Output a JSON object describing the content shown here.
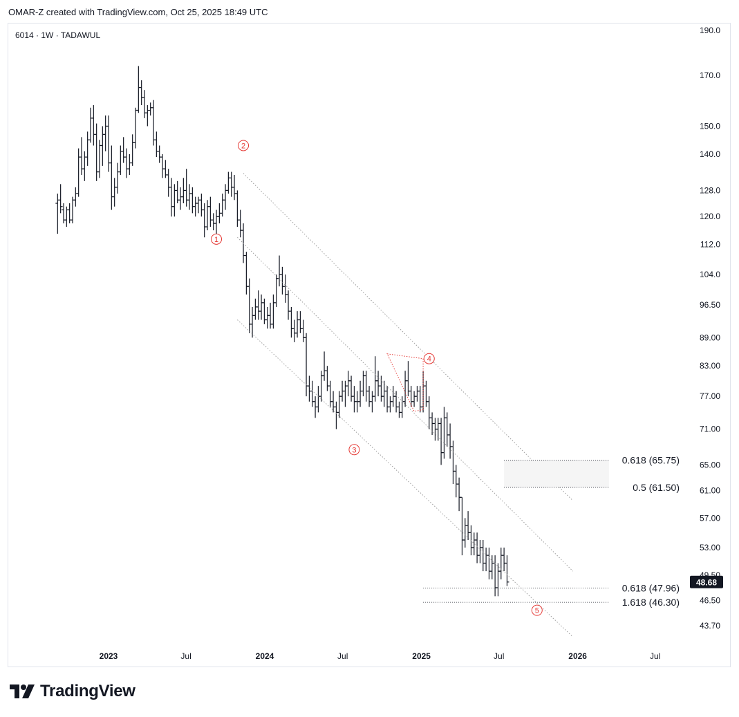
{
  "header": {
    "caption": "OMAR-Z created with TradingView.com, Oct 25, 2025 18:49 UTC"
  },
  "symbol_line": "6014 · 1W · TADAWUL",
  "brand": {
    "name": "TradingView",
    "logo_icon": "tradingview-logo-icon"
  },
  "colors": {
    "bars": "#131722",
    "wave_labels": "#e53935",
    "fib_lines": "#131722",
    "channel": "#9e9e9e",
    "price_tag_bg": "#131722"
  },
  "chart_data": {
    "type": "ohlc",
    "timeframe": "1W",
    "exchange": "TADAWUL",
    "ticker": "6014",
    "y_scale": "log",
    "y_ticks": [
      "190.0",
      "170.0",
      "150.0",
      "140.0",
      "128.0",
      "120.0",
      "112.0",
      "104.0",
      "96.50",
      "89.00",
      "83.00",
      "77.00",
      "71.00",
      "65.00",
      "61.00",
      "57.00",
      "53.00",
      "49.50",
      "46.50",
      "43.70"
    ],
    "x_ticks": [
      "2023",
      "Jul",
      "2024",
      "Jul",
      "2025",
      "Jul",
      "2026",
      "Jul"
    ],
    "last_price": "48.68",
    "wave_labels": [
      {
        "label": "1",
        "date": "2023-09-10",
        "price": 113.5
      },
      {
        "label": "2",
        "date": "2023-11-12",
        "price": 143.0
      },
      {
        "label": "3",
        "date": "2024-07-28",
        "price": 67.5
      },
      {
        "label": "4",
        "date": "2025-01-19",
        "price": 84.5
      },
      {
        "label": "5",
        "date": "2025-09-28",
        "price": 45.4
      }
    ],
    "fib_levels": [
      {
        "label": "0.618 (65.75)",
        "price": 65.75,
        "from": "2025-07-13",
        "to": "2026-03-15"
      },
      {
        "label": "0.5 (61.50)",
        "price": 61.5,
        "from": "2025-07-13",
        "to": "2026-03-15"
      },
      {
        "label": "0.618 (47.96)",
        "price": 47.96,
        "from": "2025-01-05",
        "to": "2026-03-15"
      },
      {
        "label": "1.618 (46.30)",
        "price": 46.3,
        "from": "2025-01-05",
        "to": "2026-03-15"
      }
    ],
    "channel_lines": [
      {
        "from": [
          "2023-11-12",
          133.5
        ],
        "to": [
          "2025-12-21",
          59.5
        ]
      },
      {
        "from": [
          "2023-10-29",
          114.0
        ],
        "to": [
          "2025-12-21",
          50.0
        ]
      },
      {
        "from": [
          "2023-10-29",
          93.0
        ],
        "to": [
          "2025-12-21",
          42.5
        ]
      }
    ],
    "triangle": [
      [
        "2024-10-13",
        85.5
      ],
      [
        "2025-01-05",
        84.5
      ],
      [
        "2025-01-05",
        74.5
      ],
      [
        "2024-12-15",
        74.2
      ]
    ],
    "series": [
      {
        "d": "2022-09-04",
        "o": 124,
        "h": 127,
        "l": 115,
        "c": 125
      },
      {
        "d": "2022-09-11",
        "o": 125,
        "h": 130,
        "l": 121,
        "c": 123
      },
      {
        "d": "2022-09-18",
        "o": 122,
        "h": 124,
        "l": 118,
        "c": 119
      },
      {
        "d": "2022-09-25",
        "o": 119,
        "h": 123,
        "l": 117,
        "c": 122
      },
      {
        "d": "2022-10-02",
        "o": 122,
        "h": 124,
        "l": 118,
        "c": 119
      },
      {
        "d": "2022-10-09",
        "o": 119,
        "h": 126,
        "l": 118,
        "c": 125
      },
      {
        "d": "2022-10-16",
        "o": 125,
        "h": 129,
        "l": 123,
        "c": 127
      },
      {
        "d": "2022-10-23",
        "o": 127,
        "h": 142,
        "l": 126,
        "c": 139
      },
      {
        "d": "2022-10-30",
        "o": 139,
        "h": 146,
        "l": 133,
        "c": 135
      },
      {
        "d": "2022-11-06",
        "o": 135,
        "h": 141,
        "l": 131,
        "c": 139
      },
      {
        "d": "2022-11-13",
        "o": 139,
        "h": 148,
        "l": 136,
        "c": 145
      },
      {
        "d": "2022-11-20",
        "o": 145,
        "h": 157,
        "l": 144,
        "c": 153
      },
      {
        "d": "2022-11-27",
        "o": 153,
        "h": 158,
        "l": 143,
        "c": 147
      },
      {
        "d": "2022-12-04",
        "o": 147,
        "h": 151,
        "l": 131,
        "c": 134
      },
      {
        "d": "2022-12-11",
        "o": 134,
        "h": 145,
        "l": 132,
        "c": 143
      },
      {
        "d": "2022-12-18",
        "o": 143,
        "h": 150,
        "l": 136,
        "c": 147
      },
      {
        "d": "2022-12-25",
        "o": 147,
        "h": 154,
        "l": 141,
        "c": 150
      },
      {
        "d": "2023-01-01",
        "o": 150,
        "h": 154,
        "l": 134,
        "c": 137
      },
      {
        "d": "2023-01-08",
        "o": 137,
        "h": 143,
        "l": 122,
        "c": 126
      },
      {
        "d": "2023-01-15",
        "o": 126,
        "h": 132,
        "l": 123,
        "c": 129
      },
      {
        "d": "2023-01-22",
        "o": 129,
        "h": 137,
        "l": 127,
        "c": 134
      },
      {
        "d": "2023-01-29",
        "o": 134,
        "h": 143,
        "l": 133,
        "c": 141
      },
      {
        "d": "2023-02-05",
        "o": 141,
        "h": 146,
        "l": 137,
        "c": 139
      },
      {
        "d": "2023-02-12",
        "o": 139,
        "h": 142,
        "l": 132,
        "c": 135
      },
      {
        "d": "2023-02-19",
        "o": 135,
        "h": 140,
        "l": 133,
        "c": 137
      },
      {
        "d": "2023-02-26",
        "o": 137,
        "h": 147,
        "l": 136,
        "c": 144
      },
      {
        "d": "2023-03-05",
        "o": 144,
        "h": 157,
        "l": 142,
        "c": 156
      },
      {
        "d": "2023-03-12",
        "o": 156,
        "h": 174,
        "l": 155,
        "c": 165
      },
      {
        "d": "2023-03-19",
        "o": 165,
        "h": 168,
        "l": 158,
        "c": 161
      },
      {
        "d": "2023-03-26",
        "o": 161,
        "h": 164,
        "l": 153,
        "c": 155
      },
      {
        "d": "2023-04-02",
        "o": 155,
        "h": 158,
        "l": 150,
        "c": 156
      },
      {
        "d": "2023-04-09",
        "o": 156,
        "h": 159,
        "l": 154,
        "c": 157
      },
      {
        "d": "2023-04-16",
        "o": 157,
        "h": 160,
        "l": 143,
        "c": 145
      },
      {
        "d": "2023-04-23",
        "o": 145,
        "h": 148,
        "l": 139,
        "c": 141
      },
      {
        "d": "2023-04-30",
        "o": 141,
        "h": 143,
        "l": 137,
        "c": 139
      },
      {
        "d": "2023-05-07",
        "o": 139,
        "h": 140,
        "l": 132,
        "c": 135
      },
      {
        "d": "2023-05-14",
        "o": 135,
        "h": 138,
        "l": 132,
        "c": 133
      },
      {
        "d": "2023-05-21",
        "o": 133,
        "h": 135,
        "l": 126,
        "c": 129
      },
      {
        "d": "2023-05-28",
        "o": 129,
        "h": 132,
        "l": 120,
        "c": 123
      },
      {
        "d": "2023-06-04",
        "o": 123,
        "h": 130,
        "l": 120,
        "c": 128
      },
      {
        "d": "2023-06-11",
        "o": 128,
        "h": 131,
        "l": 124,
        "c": 125
      },
      {
        "d": "2023-06-18",
        "o": 125,
        "h": 129,
        "l": 122,
        "c": 126
      },
      {
        "d": "2023-06-25",
        "o": 126,
        "h": 132,
        "l": 124,
        "c": 128
      },
      {
        "d": "2023-07-02",
        "o": 128,
        "h": 135,
        "l": 123,
        "c": 125
      },
      {
        "d": "2023-07-09",
        "o": 125,
        "h": 130,
        "l": 122,
        "c": 127
      },
      {
        "d": "2023-07-16",
        "o": 127,
        "h": 129,
        "l": 121,
        "c": 123
      },
      {
        "d": "2023-07-23",
        "o": 123,
        "h": 126,
        "l": 120,
        "c": 124
      },
      {
        "d": "2023-07-30",
        "o": 124,
        "h": 126,
        "l": 121,
        "c": 125
      },
      {
        "d": "2023-08-06",
        "o": 125,
        "h": 127,
        "l": 120,
        "c": 122
      },
      {
        "d": "2023-08-13",
        "o": 122,
        "h": 124,
        "l": 114,
        "c": 117
      },
      {
        "d": "2023-08-20",
        "o": 117,
        "h": 125,
        "l": 116,
        "c": 123
      },
      {
        "d": "2023-08-27",
        "o": 123,
        "h": 126,
        "l": 117,
        "c": 119
      },
      {
        "d": "2023-09-03",
        "o": 119,
        "h": 121,
        "l": 116,
        "c": 118
      },
      {
        "d": "2023-09-10",
        "o": 118,
        "h": 122,
        "l": 114,
        "c": 120
      },
      {
        "d": "2023-09-17",
        "o": 120,
        "h": 124,
        "l": 118,
        "c": 121
      },
      {
        "d": "2023-09-24",
        "o": 121,
        "h": 127,
        "l": 120,
        "c": 125
      },
      {
        "d": "2023-10-01",
        "o": 125,
        "h": 130,
        "l": 122,
        "c": 128
      },
      {
        "d": "2023-10-08",
        "o": 128,
        "h": 134,
        "l": 127,
        "c": 132
      },
      {
        "d": "2023-10-15",
        "o": 132,
        "h": 134,
        "l": 126,
        "c": 129
      },
      {
        "d": "2023-10-22",
        "o": 129,
        "h": 133,
        "l": 125,
        "c": 127
      },
      {
        "d": "2023-10-29",
        "o": 127,
        "h": 128,
        "l": 117,
        "c": 119
      },
      {
        "d": "2023-11-05",
        "o": 119,
        "h": 122,
        "l": 114,
        "c": 116
      },
      {
        "d": "2023-11-12",
        "o": 116,
        "h": 118,
        "l": 107,
        "c": 109
      },
      {
        "d": "2023-11-19",
        "o": 109,
        "h": 110,
        "l": 99,
        "c": 101
      },
      {
        "d": "2023-11-26",
        "o": 101,
        "h": 103,
        "l": 90,
        "c": 92
      },
      {
        "d": "2023-12-03",
        "o": 92,
        "h": 96,
        "l": 89,
        "c": 94
      },
      {
        "d": "2023-12-10",
        "o": 94,
        "h": 98,
        "l": 93,
        "c": 96
      },
      {
        "d": "2023-12-17",
        "o": 96,
        "h": 100,
        "l": 93,
        "c": 95
      },
      {
        "d": "2023-12-24",
        "o": 95,
        "h": 99,
        "l": 93,
        "c": 97
      },
      {
        "d": "2023-12-31",
        "o": 97,
        "h": 98,
        "l": 92,
        "c": 93
      },
      {
        "d": "2024-01-07",
        "o": 93,
        "h": 96,
        "l": 91,
        "c": 94
      },
      {
        "d": "2024-01-14",
        "o": 94,
        "h": 97,
        "l": 91,
        "c": 92
      },
      {
        "d": "2024-01-21",
        "o": 92,
        "h": 99,
        "l": 91,
        "c": 97
      },
      {
        "d": "2024-01-28",
        "o": 97,
        "h": 104,
        "l": 96,
        "c": 103
      },
      {
        "d": "2024-02-04",
        "o": 103,
        "h": 109,
        "l": 101,
        "c": 104
      },
      {
        "d": "2024-02-11",
        "o": 104,
        "h": 106,
        "l": 99,
        "c": 101
      },
      {
        "d": "2024-02-18",
        "o": 101,
        "h": 104,
        "l": 97,
        "c": 99
      },
      {
        "d": "2024-02-25",
        "o": 99,
        "h": 100,
        "l": 93,
        "c": 95
      },
      {
        "d": "2024-03-03",
        "o": 95,
        "h": 96,
        "l": 89,
        "c": 91
      },
      {
        "d": "2024-03-10",
        "o": 91,
        "h": 93,
        "l": 88,
        "c": 90
      },
      {
        "d": "2024-03-17",
        "o": 90,
        "h": 95,
        "l": 89,
        "c": 93
      },
      {
        "d": "2024-03-24",
        "o": 93,
        "h": 95,
        "l": 90,
        "c": 91
      },
      {
        "d": "2024-03-31",
        "o": 91,
        "h": 93,
        "l": 88,
        "c": 89
      },
      {
        "d": "2024-04-07",
        "o": 89,
        "h": 90,
        "l": 77,
        "c": 79
      },
      {
        "d": "2024-04-14",
        "o": 79,
        "h": 81,
        "l": 76,
        "c": 78
      },
      {
        "d": "2024-04-21",
        "o": 78,
        "h": 80,
        "l": 75,
        "c": 76
      },
      {
        "d": "2024-04-28",
        "o": 76,
        "h": 77,
        "l": 73,
        "c": 75
      },
      {
        "d": "2024-05-05",
        "o": 75,
        "h": 79,
        "l": 74,
        "c": 77
      },
      {
        "d": "2024-05-12",
        "o": 77,
        "h": 82,
        "l": 76,
        "c": 81
      },
      {
        "d": "2024-05-19",
        "o": 81,
        "h": 86,
        "l": 80,
        "c": 82
      },
      {
        "d": "2024-05-26",
        "o": 82,
        "h": 83,
        "l": 78,
        "c": 79
      },
      {
        "d": "2024-06-02",
        "o": 79,
        "h": 80,
        "l": 75,
        "c": 76
      },
      {
        "d": "2024-06-09",
        "o": 76,
        "h": 78,
        "l": 74,
        "c": 75
      },
      {
        "d": "2024-06-16",
        "o": 75,
        "h": 76,
        "l": 71,
        "c": 74
      },
      {
        "d": "2024-06-23",
        "o": 74,
        "h": 78,
        "l": 73,
        "c": 77
      },
      {
        "d": "2024-06-30",
        "o": 77,
        "h": 80,
        "l": 76,
        "c": 78
      },
      {
        "d": "2024-07-07",
        "o": 78,
        "h": 80,
        "l": 75,
        "c": 79
      },
      {
        "d": "2024-07-14",
        "o": 79,
        "h": 82,
        "l": 77,
        "c": 80
      },
      {
        "d": "2024-07-21",
        "o": 80,
        "h": 81,
        "l": 76,
        "c": 77
      },
      {
        "d": "2024-07-28",
        "o": 77,
        "h": 79,
        "l": 74,
        "c": 76
      },
      {
        "d": "2024-08-04",
        "o": 76,
        "h": 78,
        "l": 74,
        "c": 76
      },
      {
        "d": "2024-08-11",
        "o": 76,
        "h": 80,
        "l": 75,
        "c": 78
      },
      {
        "d": "2024-08-18",
        "o": 78,
        "h": 82,
        "l": 77,
        "c": 81
      },
      {
        "d": "2024-08-25",
        "o": 81,
        "h": 82,
        "l": 76,
        "c": 78
      },
      {
        "d": "2024-09-01",
        "o": 78,
        "h": 79,
        "l": 75,
        "c": 76
      },
      {
        "d": "2024-09-08",
        "o": 76,
        "h": 78,
        "l": 74,
        "c": 77
      },
      {
        "d": "2024-09-15",
        "o": 77,
        "h": 85,
        "l": 76,
        "c": 80
      },
      {
        "d": "2024-09-22",
        "o": 80,
        "h": 82,
        "l": 77,
        "c": 79
      },
      {
        "d": "2024-09-29",
        "o": 79,
        "h": 81,
        "l": 76,
        "c": 77
      },
      {
        "d": "2024-10-06",
        "o": 77,
        "h": 80,
        "l": 75,
        "c": 78
      },
      {
        "d": "2024-10-13",
        "o": 78,
        "h": 79,
        "l": 74,
        "c": 75
      },
      {
        "d": "2024-10-20",
        "o": 75,
        "h": 77,
        "l": 74,
        "c": 76
      },
      {
        "d": "2024-10-27",
        "o": 76,
        "h": 79,
        "l": 75,
        "c": 77
      },
      {
        "d": "2024-11-03",
        "o": 77,
        "h": 78,
        "l": 74,
        "c": 75
      },
      {
        "d": "2024-11-10",
        "o": 75,
        "h": 76,
        "l": 73,
        "c": 74
      },
      {
        "d": "2024-11-17",
        "o": 74,
        "h": 77,
        "l": 73,
        "c": 76
      },
      {
        "d": "2024-11-24",
        "o": 76,
        "h": 82,
        "l": 75,
        "c": 80
      },
      {
        "d": "2024-12-01",
        "o": 80,
        "h": 84,
        "l": 77,
        "c": 78
      },
      {
        "d": "2024-12-08",
        "o": 78,
        "h": 79,
        "l": 75,
        "c": 76
      },
      {
        "d": "2024-12-15",
        "o": 76,
        "h": 78,
        "l": 75,
        "c": 77
      },
      {
        "d": "2024-12-22",
        "o": 77,
        "h": 79,
        "l": 76,
        "c": 78
      },
      {
        "d": "2024-12-29",
        "o": 78,
        "h": 79,
        "l": 74,
        "c": 75
      },
      {
        "d": "2025-01-05",
        "o": 75,
        "h": 82,
        "l": 74,
        "c": 79
      },
      {
        "d": "2025-01-12",
        "o": 79,
        "h": 80,
        "l": 75,
        "c": 76
      },
      {
        "d": "2025-01-19",
        "o": 76,
        "h": 77,
        "l": 71,
        "c": 73
      },
      {
        "d": "2025-01-26",
        "o": 73,
        "h": 74,
        "l": 70,
        "c": 72
      },
      {
        "d": "2025-02-02",
        "o": 72,
        "h": 73,
        "l": 69,
        "c": 71
      },
      {
        "d": "2025-02-09",
        "o": 71,
        "h": 73,
        "l": 69,
        "c": 72
      },
      {
        "d": "2025-02-16",
        "o": 72,
        "h": 73,
        "l": 65,
        "c": 67
      },
      {
        "d": "2025-02-23",
        "o": 67,
        "h": 75,
        "l": 66,
        "c": 73
      },
      {
        "d": "2025-03-02",
        "o": 73,
        "h": 74,
        "l": 68,
        "c": 70
      },
      {
        "d": "2025-03-09",
        "o": 70,
        "h": 72,
        "l": 66,
        "c": 68
      },
      {
        "d": "2025-03-16",
        "o": 68,
        "h": 69,
        "l": 62,
        "c": 64
      },
      {
        "d": "2025-03-23",
        "o": 64,
        "h": 65,
        "l": 60,
        "c": 62
      },
      {
        "d": "2025-03-30",
        "o": 62,
        "h": 63,
        "l": 58,
        "c": 60
      },
      {
        "d": "2025-04-06",
        "o": 60,
        "h": 60,
        "l": 52,
        "c": 54
      },
      {
        "d": "2025-04-13",
        "o": 54,
        "h": 57,
        "l": 53,
        "c": 56
      },
      {
        "d": "2025-04-20",
        "o": 56,
        "h": 58,
        "l": 54,
        "c": 55
      },
      {
        "d": "2025-04-27",
        "o": 55,
        "h": 56,
        "l": 52,
        "c": 53
      },
      {
        "d": "2025-05-04",
        "o": 53,
        "h": 55,
        "l": 52,
        "c": 54
      },
      {
        "d": "2025-05-11",
        "o": 54,
        "h": 55,
        "l": 51,
        "c": 52
      },
      {
        "d": "2025-05-18",
        "o": 52,
        "h": 54,
        "l": 51,
        "c": 53
      },
      {
        "d": "2025-05-25",
        "o": 53,
        "h": 54,
        "l": 50,
        "c": 51
      },
      {
        "d": "2025-06-01",
        "o": 51,
        "h": 53,
        "l": 50,
        "c": 52
      },
      {
        "d": "2025-06-08",
        "o": 52,
        "h": 53,
        "l": 49,
        "c": 50
      },
      {
        "d": "2025-06-15",
        "o": 50,
        "h": 52,
        "l": 49,
        "c": 51
      },
      {
        "d": "2025-06-22",
        "o": 51,
        "h": 52,
        "l": 47,
        "c": 48
      },
      {
        "d": "2025-06-29",
        "o": 48,
        "h": 51,
        "l": 47,
        "c": 50
      },
      {
        "d": "2025-07-06",
        "o": 50,
        "h": 53,
        "l": 49,
        "c": 52
      },
      {
        "d": "2025-07-13",
        "o": 52,
        "h": 53,
        "l": 50,
        "c": 51
      },
      {
        "d": "2025-07-20",
        "o": 51,
        "h": 52,
        "l": 48.2,
        "c": 48.68
      }
    ]
  }
}
